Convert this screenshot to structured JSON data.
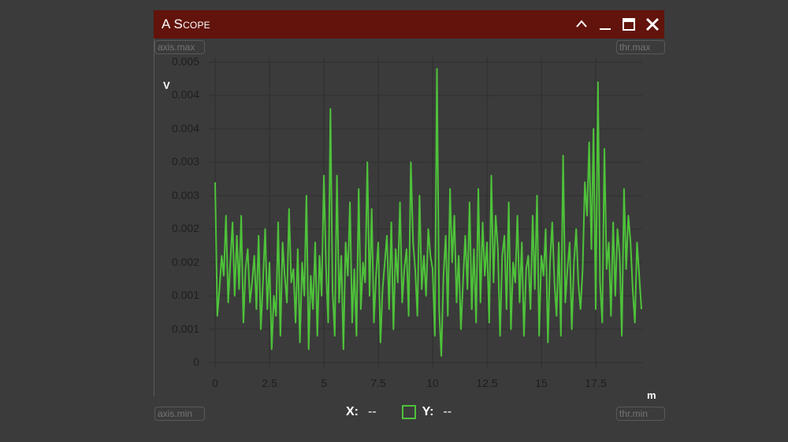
{
  "window": {
    "title": "A Scope",
    "controls": {
      "collapse": "chevron-up-icon",
      "minimize": "minimize-icon",
      "maximize": "maximize-icon",
      "close": "close-icon"
    }
  },
  "inputs": {
    "axis_max_placeholder": "axis.max",
    "axis_min_placeholder": "axis.min",
    "thr_max_placeholder": "thr.max",
    "thr_min_placeholder": "thr.min"
  },
  "axes": {
    "y_unit": "V",
    "x_unit": "m",
    "y_ticks": [
      "0.005",
      "0.004",
      "0.004",
      "0.003",
      "0.003",
      "0.002",
      "0.002",
      "0.001",
      "0.001",
      "0"
    ],
    "x_ticks": [
      "0",
      "2.5",
      "5",
      "7.5",
      "10",
      "12.5",
      "15",
      "17.5"
    ]
  },
  "legend": {
    "x_label": "X:",
    "x_value": "--",
    "y_label": "Y:",
    "y_value": "--"
  },
  "colors": {
    "titlebar": "#62130b",
    "background": "#3b3b3b",
    "trace": "#4ec23a",
    "grid": "#333333"
  },
  "chart_data": {
    "type": "line",
    "title": "A Scope",
    "xlabel": "m",
    "ylabel": "V",
    "xlim": [
      0,
      19.7
    ],
    "ylim": [
      0,
      0.0045
    ],
    "grid": true,
    "legend_position": "bottom",
    "series": [
      {
        "name": "Y",
        "color": "#4ec23a",
        "x": [
          0.0,
          0.1,
          0.2,
          0.3,
          0.4,
          0.5,
          0.6,
          0.7,
          0.8,
          0.9,
          1.0,
          1.1,
          1.2,
          1.3,
          1.4,
          1.5,
          1.6,
          1.7,
          1.8,
          1.9,
          2.0,
          2.1,
          2.2,
          2.3,
          2.4,
          2.5,
          2.6,
          2.7,
          2.8,
          2.9,
          3.0,
          3.1,
          3.2,
          3.3,
          3.4,
          3.5,
          3.6,
          3.7,
          3.8,
          3.9,
          4.0,
          4.1,
          4.2,
          4.3,
          4.4,
          4.5,
          4.6,
          4.7,
          4.8,
          4.9,
          5.0,
          5.1,
          5.2,
          5.3,
          5.4,
          5.5,
          5.6,
          5.7,
          5.8,
          5.9,
          6.0,
          6.1,
          6.2,
          6.3,
          6.4,
          6.5,
          6.6,
          6.7,
          6.8,
          6.9,
          7.0,
          7.1,
          7.2,
          7.3,
          7.4,
          7.5,
          7.6,
          7.7,
          7.8,
          7.9,
          8.0,
          8.1,
          8.2,
          8.3,
          8.4,
          8.5,
          8.6,
          8.7,
          8.8,
          8.9,
          9.0,
          9.1,
          9.2,
          9.3,
          9.4,
          9.5,
          9.6,
          9.7,
          9.8,
          9.9,
          10.0,
          10.1,
          10.2,
          10.3,
          10.4,
          10.5,
          10.6,
          10.7,
          10.8,
          10.9,
          11.0,
          11.1,
          11.2,
          11.3,
          11.4,
          11.5,
          11.6,
          11.7,
          11.8,
          11.9,
          12.0,
          12.1,
          12.2,
          12.3,
          12.4,
          12.5,
          12.6,
          12.7,
          12.8,
          12.9,
          13.0,
          13.1,
          13.2,
          13.3,
          13.4,
          13.5,
          13.6,
          13.7,
          13.8,
          13.9,
          14.0,
          14.1,
          14.2,
          14.3,
          14.4,
          14.5,
          14.6,
          14.7,
          14.8,
          14.9,
          15.0,
          15.1,
          15.2,
          15.3,
          15.4,
          15.5,
          15.6,
          15.7,
          15.8,
          15.9,
          16.0,
          16.1,
          16.2,
          16.3,
          16.4,
          16.5,
          16.6,
          16.7,
          16.8,
          16.9,
          17.0,
          17.1,
          17.2,
          17.3,
          17.4,
          17.5,
          17.6,
          17.7,
          17.8,
          17.9,
          18.0,
          18.1,
          18.2,
          18.3,
          18.4,
          18.5,
          18.6,
          18.7,
          18.8,
          18.9,
          19.0,
          19.1,
          19.2,
          19.3,
          19.4,
          19.5,
          19.6
        ],
        "values": [
          0.0027,
          0.0007,
          0.0011,
          0.0016,
          0.0013,
          0.0022,
          0.0009,
          0.0015,
          0.0021,
          0.001,
          0.0019,
          0.0011,
          0.0022,
          0.0006,
          0.0014,
          0.0017,
          0.0009,
          0.0012,
          0.0016,
          0.0008,
          0.0019,
          0.0005,
          0.0012,
          0.002,
          0.0008,
          0.0015,
          0.0002,
          0.001,
          0.0007,
          0.0021,
          0.0004,
          0.0018,
          0.0013,
          0.0009,
          0.0023,
          0.0012,
          0.0014,
          0.0006,
          0.0017,
          0.0003,
          0.0015,
          0.001,
          0.0025,
          0.0002,
          0.0013,
          0.0008,
          0.0018,
          0.0004,
          0.0016,
          0.001,
          0.0028,
          0.0014,
          0.0006,
          0.0038,
          0.0011,
          0.0004,
          0.0028,
          0.0009,
          0.0016,
          0.0002,
          0.0018,
          0.0013,
          0.0024,
          0.0006,
          0.0014,
          0.0004,
          0.0026,
          0.0008,
          0.0015,
          0.0012,
          0.003,
          0.001,
          0.0023,
          0.0006,
          0.0013,
          0.0018,
          0.0003,
          0.0011,
          0.0015,
          0.0019,
          0.0008,
          0.0021,
          0.0005,
          0.0017,
          0.0012,
          0.0024,
          0.0009,
          0.0014,
          0.0017,
          0.0007,
          0.003,
          0.0018,
          0.0014,
          0.0007,
          0.0025,
          0.0011,
          0.0016,
          0.001,
          0.002,
          0.0016,
          0.0014,
          0.0004,
          0.0044,
          0.0008,
          0.0001,
          0.0013,
          0.0019,
          0.0007,
          0.0026,
          0.0015,
          0.0022,
          0.0009,
          0.0016,
          0.0005,
          0.0012,
          0.0019,
          0.0011,
          0.0024,
          0.0008,
          0.0017,
          0.0006,
          0.0026,
          0.0009,
          0.0021,
          0.0013,
          0.0018,
          0.0006,
          0.0028,
          0.0012,
          0.0022,
          0.0017,
          0.0004,
          0.0016,
          0.0019,
          0.0008,
          0.0024,
          0.0005,
          0.0015,
          0.0012,
          0.0022,
          0.0009,
          0.0018,
          0.0004,
          0.0014,
          0.0016,
          0.0008,
          0.0022,
          0.0011,
          0.0025,
          0.0004,
          0.0016,
          0.0013,
          0.002,
          0.0003,
          0.0015,
          0.0021,
          0.0012,
          0.0007,
          0.0018,
          0.0004,
          0.0031,
          0.0009,
          0.0014,
          0.0018,
          0.0005,
          0.0015,
          0.002,
          0.0012,
          0.0008,
          0.0014,
          0.0027,
          0.0022,
          0.0033,
          0.0017,
          0.0035,
          0.0008,
          0.0042,
          0.0012,
          0.0006,
          0.0032,
          0.0014,
          0.0018,
          0.0007,
          0.0021,
          0.001,
          0.002,
          0.0016,
          0.0004,
          0.0026,
          0.0014,
          0.0022,
          0.0018,
          0.0011,
          0.0006,
          0.0018,
          0.0013,
          0.0008
        ]
      }
    ]
  }
}
